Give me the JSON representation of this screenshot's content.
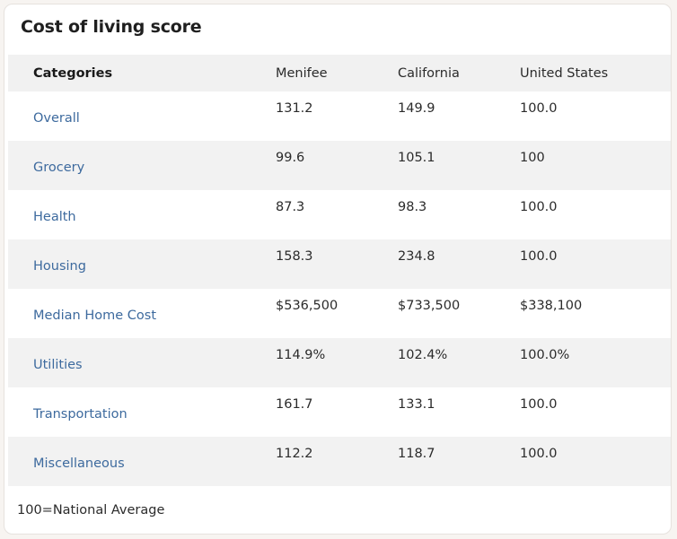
{
  "card": {
    "title": "Cost of living score",
    "footnote": "100=National Average"
  },
  "table": {
    "headers": [
      "Categories",
      "Menifee",
      "California",
      "United States"
    ],
    "rows": [
      {
        "category": "Overall",
        "values": [
          "131.2",
          "149.9",
          "100.0"
        ]
      },
      {
        "category": "Grocery",
        "values": [
          "99.6",
          "105.1",
          "100"
        ]
      },
      {
        "category": "Health",
        "values": [
          "87.3",
          "98.3",
          "100.0"
        ]
      },
      {
        "category": "Housing",
        "values": [
          "158.3",
          "234.8",
          "100.0"
        ]
      },
      {
        "category": "Median Home Cost",
        "values": [
          "$536,500",
          "$733,500",
          "$338,100"
        ]
      },
      {
        "category": "Utilities",
        "values": [
          "114.9%",
          "102.4%",
          "100.0%"
        ]
      },
      {
        "category": "Transportation",
        "values": [
          "161.7",
          "133.1",
          "100.0"
        ]
      },
      {
        "category": "Miscellaneous",
        "values": [
          "112.2",
          "118.7",
          "100.0"
        ]
      }
    ]
  },
  "colors": {
    "category_link": "#3d6a9e",
    "row_stripe": "#f2f2f2",
    "header_bg": "#f1f1f1"
  }
}
